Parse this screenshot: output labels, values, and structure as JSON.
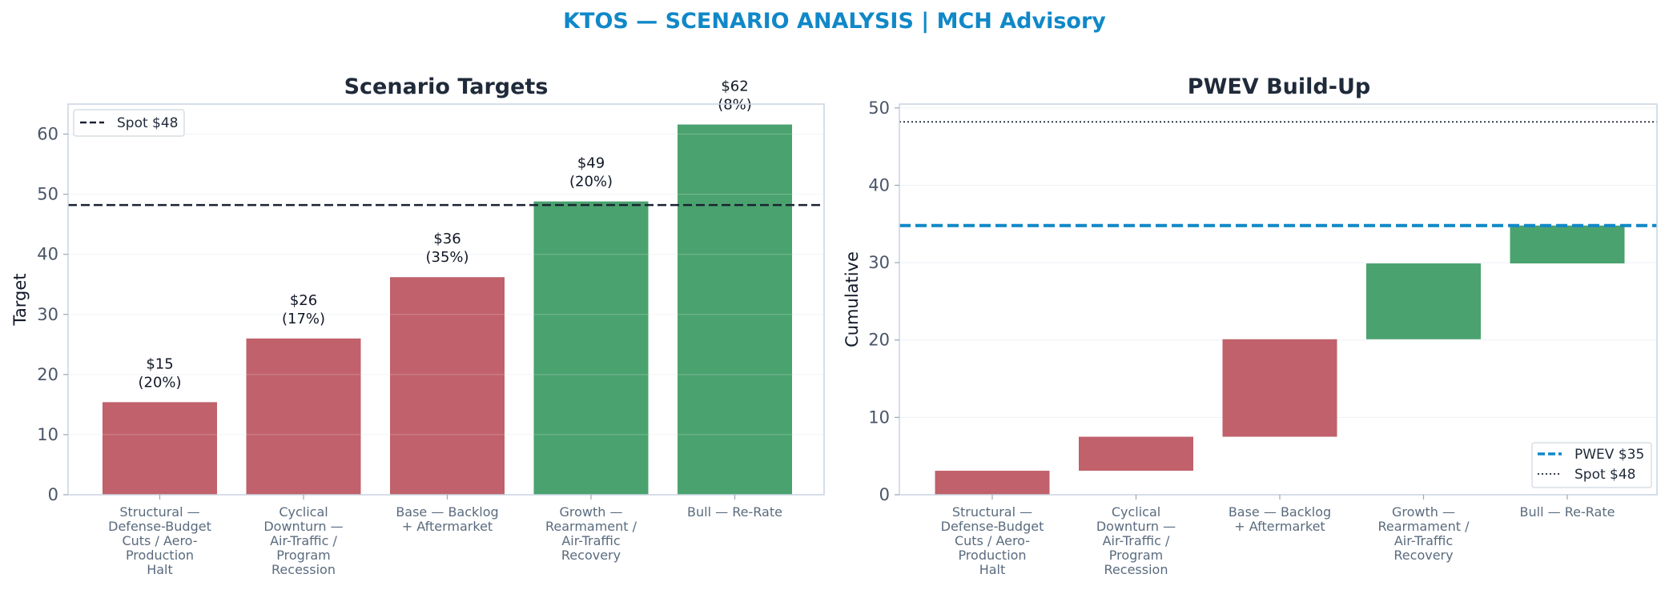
{
  "page": {
    "title": "KTOS — SCENARIO ANALYSIS | MCH Advisory"
  },
  "colors": {
    "below_spot": "#c0616b",
    "above_spot": "#4aa26e",
    "spot_line": "#1a2233",
    "pwev_line": "#1088c8",
    "title": "#1088c8",
    "axes_title": "#1f2a3a",
    "frame": "#c8d4e0",
    "grid": "#eef1f5"
  },
  "chart_data": [
    {
      "type": "bar",
      "title": "Scenario Targets",
      "xlabel": "",
      "ylabel": "Target",
      "ylim": [
        0,
        65
      ],
      "yticks": [
        "0",
        "10",
        "20",
        "30",
        "40",
        "50",
        "60"
      ],
      "categories": [
        [
          "Structural —",
          "Defense-Budget",
          "Cuts / Aero-",
          "Production",
          "Halt"
        ],
        [
          "Cyclical",
          "Downturn —",
          "Air-Traffic /",
          "Program",
          "Recession"
        ],
        [
          "Base — Backlog",
          "+ Aftermarket"
        ],
        [
          "Growth —",
          "Rearmament /",
          "Air-Traffic",
          "Recovery"
        ],
        [
          "Bull — Re-Rate"
        ]
      ],
      "values": [
        15.4,
        26.0,
        36.2,
        48.8,
        61.6
      ],
      "probabilities": [
        0.2,
        0.17,
        0.35,
        0.2,
        0.08
      ],
      "data_labels": [
        [
          "$15",
          "(20%)"
        ],
        [
          "$26",
          "(17%)"
        ],
        [
          "$36",
          "(35%)"
        ],
        [
          "$49",
          "(20%)"
        ],
        [
          "$62",
          "(8%)"
        ]
      ],
      "reference_line": {
        "value": 48.2,
        "label": "Spot $48",
        "style": "dashed"
      },
      "legend": {
        "position": "top-left",
        "entries": [
          "Spot $48"
        ]
      },
      "grid": true
    },
    {
      "type": "waterfall",
      "title": "PWEV Build-Up",
      "xlabel": "",
      "ylabel": "Cumulative",
      "ylim": [
        0,
        50.5
      ],
      "yticks": [
        "0",
        "10",
        "20",
        "30",
        "40",
        "50"
      ],
      "categories": [
        [
          "Structural —",
          "Defense-Budget",
          "Cuts / Aero-",
          "Production",
          "Halt"
        ],
        [
          "Cyclical",
          "Downturn —",
          "Air-Traffic /",
          "Program",
          "Recession"
        ],
        [
          "Base — Backlog",
          "+ Aftermarket"
        ],
        [
          "Growth —",
          "Rearmament /",
          "Air-Traffic",
          "Recovery"
        ],
        [
          "Bull — Re-Rate"
        ]
      ],
      "contributions": [
        3.1,
        4.4,
        12.6,
        9.8,
        4.9
      ],
      "cumulative_end": [
        3.1,
        7.5,
        20.1,
        29.9,
        34.8
      ],
      "reference_lines": [
        {
          "value": 34.8,
          "label": "PWEV $35",
          "style": "dashed"
        },
        {
          "value": 48.2,
          "label": "Spot $48",
          "style": "dotted"
        }
      ],
      "legend": {
        "position": "bottom-right",
        "entries": [
          "PWEV $35",
          "Spot $48"
        ]
      },
      "grid": true
    }
  ]
}
